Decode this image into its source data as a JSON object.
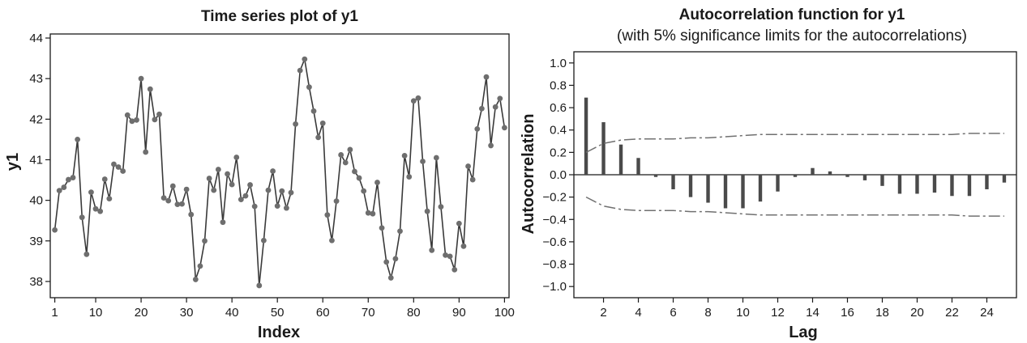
{
  "chart_data": [
    {
      "type": "line",
      "title": "Time series plot of y1",
      "xlabel": "Index",
      "ylabel": "y1",
      "xlim": [
        0,
        101
      ],
      "ylim": [
        37.6,
        44.1
      ],
      "xticks": [
        1,
        10,
        20,
        30,
        40,
        50,
        60,
        70,
        80,
        90,
        100
      ],
      "yticks": [
        38,
        39,
        40,
        41,
        42,
        43,
        44
      ],
      "grid": false,
      "colors": {
        "line": "#3a3a3a",
        "marker": "#6e6e6e"
      },
      "series": [
        {
          "values": [
            39.27,
            40.24,
            40.32,
            40.51,
            40.56,
            41.5,
            39.58,
            38.67,
            40.2,
            39.79,
            39.73,
            40.52,
            40.04,
            40.89,
            40.82,
            40.72,
            42.1,
            41.95,
            41.98,
            43.0,
            41.19,
            42.74,
            41.99,
            42.12,
            40.06,
            39.99,
            40.35,
            39.9,
            39.91,
            40.27,
            39.65,
            38.05,
            38.38,
            39.0,
            40.54,
            40.25,
            40.76,
            39.46,
            40.65,
            40.39,
            41.06,
            40.02,
            40.11,
            40.38,
            39.85,
            37.9,
            39.01,
            40.25,
            40.72,
            39.86,
            40.23,
            39.81,
            40.19,
            41.88,
            43.2,
            43.48,
            42.79,
            42.2,
            41.55,
            41.9,
            39.64,
            39.01,
            39.98,
            41.12,
            40.93,
            41.25,
            40.71,
            40.55,
            40.23,
            39.69,
            39.67,
            40.44,
            39.32,
            38.48,
            38.09,
            38.56,
            39.24,
            41.1,
            40.58,
            42.45,
            42.52,
            40.96,
            39.73,
            38.77,
            41.05,
            39.84,
            38.65,
            38.62,
            38.29,
            39.43,
            38.87,
            40.84,
            40.51,
            41.76,
            42.26,
            43.04,
            41.35,
            42.3,
            42.51,
            41.79
          ]
        }
      ]
    },
    {
      "type": "bar",
      "title": "Autocorrelation function for y1",
      "subtitle": "(with 5% significance limits for the autocorrelations)",
      "xlabel": "Lag",
      "ylabel": "Autocorrelation",
      "xlim": [
        0.3,
        25.7
      ],
      "ylim": [
        -1.1,
        1.1
      ],
      "xticks": [
        2,
        4,
        6,
        8,
        10,
        12,
        14,
        16,
        18,
        20,
        22,
        24
      ],
      "yticks": [
        1.0,
        0.8,
        0.6,
        0.4,
        0.2,
        0.0,
        -0.2,
        -0.4,
        -0.6,
        -0.8,
        -1.0
      ],
      "ytick_labels": [
        "1.0",
        "0.8",
        "0.6",
        "0.4",
        "0.2",
        "0.0",
        "−0.2",
        "−0.4",
        "−0.6",
        "−0.8",
        "−1.0"
      ],
      "grid": false,
      "colors": {
        "bar": "#4a4a4a",
        "limit": "#707070"
      },
      "lags": [
        1,
        2,
        3,
        4,
        5,
        6,
        7,
        8,
        9,
        10,
        11,
        12,
        13,
        14,
        15,
        16,
        17,
        18,
        19,
        20,
        21,
        22,
        23,
        24,
        25
      ],
      "values": [
        0.69,
        0.47,
        0.27,
        0.15,
        -0.02,
        -0.13,
        -0.2,
        -0.25,
        -0.3,
        -0.3,
        -0.24,
        -0.15,
        -0.02,
        0.06,
        0.03,
        -0.02,
        -0.05,
        -0.1,
        -0.17,
        -0.17,
        -0.16,
        -0.19,
        -0.19,
        -0.13,
        -0.07
      ],
      "significance_limit": [
        0.2,
        0.28,
        0.31,
        0.32,
        0.32,
        0.32,
        0.33,
        0.33,
        0.34,
        0.35,
        0.36,
        0.36,
        0.36,
        0.36,
        0.36,
        0.36,
        0.36,
        0.36,
        0.36,
        0.36,
        0.36,
        0.36,
        0.37,
        0.37,
        0.37
      ]
    }
  ]
}
